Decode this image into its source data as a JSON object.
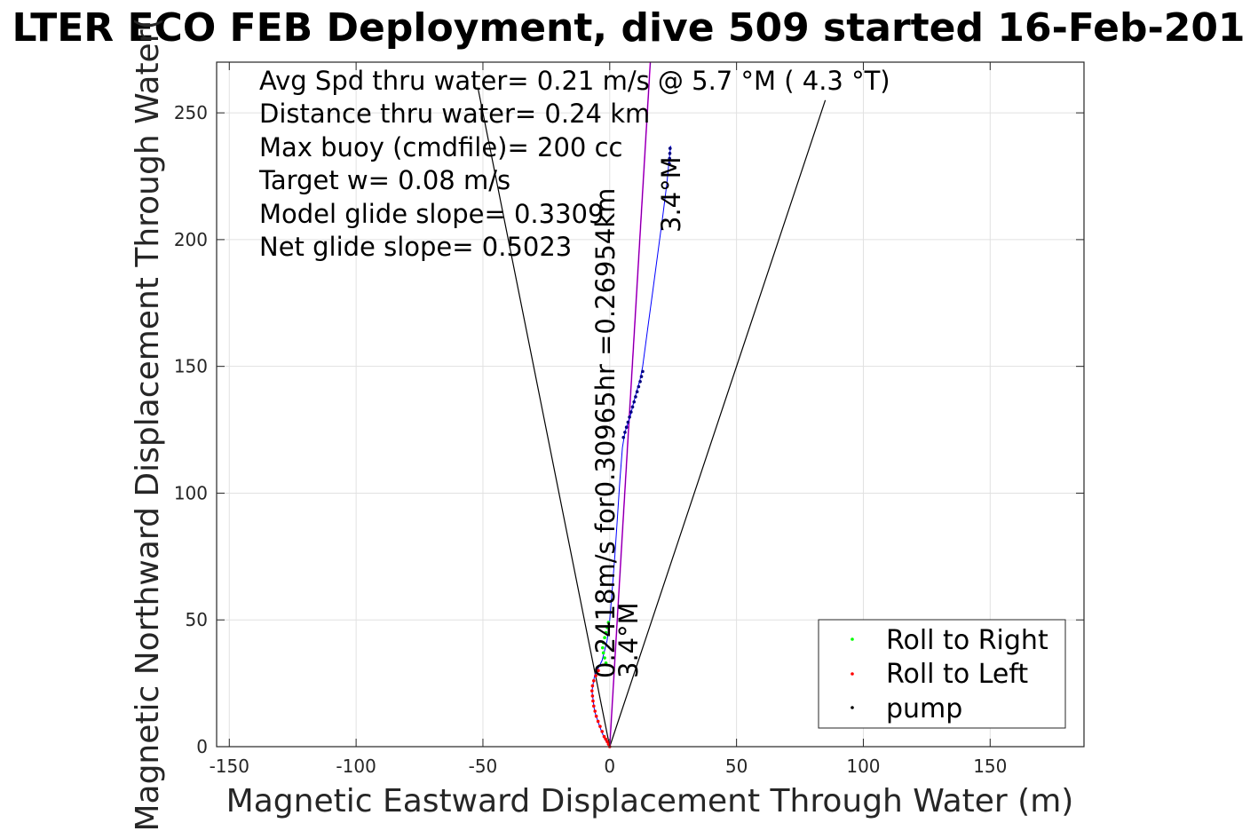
{
  "chart_data": {
    "type": "scatter",
    "title": "LTER ECO FEB Deployment, dive 509 started 16-Feb-201",
    "xlabel": "Magnetic Eastward Displacement Through Water (m)",
    "ylabel": "Magnetic Northward Displacement Through Water(",
    "xlim": [
      -155,
      187
    ],
    "ylim": [
      0,
      270
    ],
    "x_ticks": [
      -150,
      -100,
      -50,
      0,
      50,
      100,
      150
    ],
    "y_ticks": [
      0,
      50,
      100,
      150,
      200,
      250
    ],
    "grid": true,
    "legend_position": "bottom-right",
    "annotations": [
      "Avg Spd thru water=  0.21 m/s @   5.7 °M (  4.3 °T)",
      "Distance thru water=  0.24 km",
      "Max buoy (cmdfile)= 200 cc",
      "Target w= 0.08 m/s",
      "Model glide slope= 0.3309",
      "Net glide slope= 0.5023"
    ],
    "rotated_labels": {
      "heading_upper": "3.4°M",
      "heading_lower": "3.4°M",
      "track_summary": "0.2418m/s for0.30965hr =0.26954km"
    },
    "lines": {
      "cone_left": [
        [
          0,
          0
        ],
        [
          -52,
          260
        ]
      ],
      "cone_right": [
        [
          0,
          0
        ],
        [
          85,
          255
        ]
      ],
      "heading_line": [
        [
          0,
          0
        ],
        [
          16,
          270
        ]
      ]
    },
    "series": [
      {
        "name": "Roll to Right",
        "color": "#00ff00",
        "x": [
          -1.5,
          -2,
          -2.5,
          -2.8,
          -2.5,
          -2,
          -1.5,
          -1,
          -0.5
        ],
        "y": [
          33,
          35,
          37,
          39,
          41,
          43,
          45,
          47,
          49
        ]
      },
      {
        "name": "Roll to Left",
        "color": "#ff0000",
        "x": [
          0,
          -0.5,
          -1,
          -1.6,
          -2.2,
          -3,
          -3.8,
          -4.6,
          -5.3,
          -5.8,
          -6.3,
          -6.6,
          -6.8,
          -7,
          -6.8,
          -6.3,
          -5.5,
          -4.5
        ],
        "y": [
          0,
          1,
          2,
          3,
          4,
          6,
          8,
          10,
          12,
          14,
          16,
          18,
          20,
          22,
          24,
          26,
          28,
          30
        ]
      },
      {
        "name": "pump",
        "color": "#000080",
        "x": [
          5.4,
          6,
          6.6,
          7.2,
          7.8,
          8.4,
          9,
          9.6,
          10.2,
          10.8,
          11.4,
          12,
          12.5,
          13,
          23.5,
          23.6,
          23.7,
          23.8
        ],
        "y": [
          122,
          124,
          126,
          128,
          130,
          132,
          134,
          136,
          138,
          140,
          142,
          144,
          146,
          148,
          230,
          232,
          234,
          236
        ]
      }
    ],
    "track": {
      "x": [
        0,
        -2,
        -4,
        -6,
        -7,
        -6,
        -3,
        -1,
        0,
        1,
        2,
        3,
        4,
        5,
        6,
        8,
        10,
        12,
        13,
        15,
        17,
        19,
        21,
        22.5,
        23.5,
        24
      ],
      "y": [
        0,
        3,
        8,
        14,
        22,
        28,
        34,
        42,
        50,
        62,
        75,
        90,
        105,
        118,
        124,
        130,
        138,
        145,
        150,
        165,
        180,
        195,
        210,
        222,
        232,
        237
      ]
    }
  }
}
